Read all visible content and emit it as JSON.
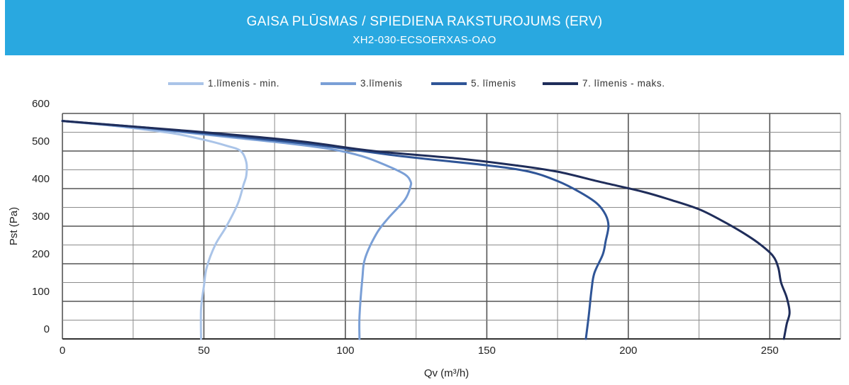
{
  "header": {
    "title": "GAISA PLŪSMAS / SPIEDIENA RAKSTUROJUMS (ERV)",
    "subtitle": "XH2-030-ECSOERXAS-OAO"
  },
  "colors": {
    "header_bg": "#29a8e0",
    "grid": "#8c8c8c",
    "series": [
      "#aac4e8",
      "#7a9fd6",
      "#2f5597",
      "#1f2d5a"
    ]
  },
  "chart_data": {
    "type": "line",
    "xlabel": "Qv (m³/h)",
    "ylabel": "Pst (Pa)",
    "xlim": [
      0,
      275
    ],
    "ylim": [
      0,
      600
    ],
    "x_ticks": [
      0,
      50,
      100,
      150,
      200,
      250
    ],
    "y_ticks": [
      0,
      100,
      200,
      300,
      400,
      500,
      600
    ],
    "grid": true,
    "legend_position": "top-center",
    "series": [
      {
        "name": "1.līmenis - min.",
        "points": [
          [
            0,
            580
          ],
          [
            15,
            570
          ],
          [
            30,
            556
          ],
          [
            40,
            546
          ],
          [
            50,
            530
          ],
          [
            58,
            514
          ],
          [
            63,
            500
          ],
          [
            65,
            470
          ],
          [
            65,
            435
          ],
          [
            64,
            410
          ],
          [
            62,
            360
          ],
          [
            58,
            300
          ],
          [
            54,
            250
          ],
          [
            51,
            190
          ],
          [
            50,
            140
          ],
          [
            49,
            80
          ],
          [
            49,
            0
          ]
        ]
      },
      {
        "name": "3.līmenis",
        "points": [
          [
            0,
            580
          ],
          [
            20,
            566
          ],
          [
            40,
            552
          ],
          [
            60,
            536
          ],
          [
            80,
            520
          ],
          [
            95,
            505
          ],
          [
            106,
            486
          ],
          [
            115,
            460
          ],
          [
            121,
            438
          ],
          [
            123,
            420
          ],
          [
            123,
            405
          ],
          [
            121,
            370
          ],
          [
            115,
            320
          ],
          [
            111,
            280
          ],
          [
            107,
            215
          ],
          [
            106,
            160
          ],
          [
            105,
            60
          ],
          [
            105,
            0
          ]
        ]
      },
      {
        "name": "5. līmenis",
        "points": [
          [
            0,
            580
          ],
          [
            30,
            562
          ],
          [
            60,
            540
          ],
          [
            90,
            516
          ],
          [
            120,
            486
          ],
          [
            150,
            462
          ],
          [
            165,
            445
          ],
          [
            175,
            420
          ],
          [
            183,
            390
          ],
          [
            189,
            360
          ],
          [
            192,
            330
          ],
          [
            193,
            300
          ],
          [
            192,
            260
          ],
          [
            191,
            225
          ],
          [
            188,
            175
          ],
          [
            187,
            130
          ],
          [
            186,
            60
          ],
          [
            185,
            0
          ]
        ]
      },
      {
        "name": "7. līmenis - maks.",
        "points": [
          [
            0,
            580
          ],
          [
            25,
            565
          ],
          [
            55,
            547
          ],
          [
            85,
            525
          ],
          [
            110,
            500
          ],
          [
            140,
            480
          ],
          [
            160,
            462
          ],
          [
            175,
            445
          ],
          [
            190,
            418
          ],
          [
            205,
            392
          ],
          [
            215,
            370
          ],
          [
            225,
            345
          ],
          [
            233,
            315
          ],
          [
            240,
            285
          ],
          [
            246,
            255
          ],
          [
            251,
            222
          ],
          [
            253,
            190
          ],
          [
            254,
            150
          ],
          [
            256,
            110
          ],
          [
            257,
            70
          ],
          [
            256,
            40
          ],
          [
            255,
            0
          ]
        ]
      }
    ]
  }
}
